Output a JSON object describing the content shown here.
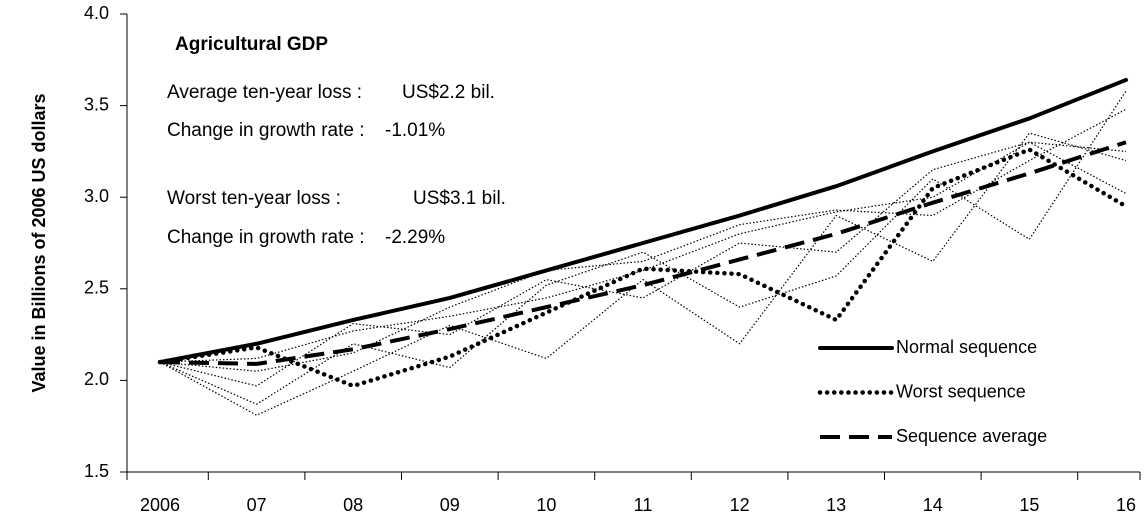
{
  "chart_data": {
    "type": "line",
    "annotations": [
      "Agricultural GDP",
      "Average ten-year loss :",
      "US$2.2 bil.",
      "Change in growth rate :",
      "-1.01%",
      "Worst ten-year loss :",
      "US$3.1 bil.",
      "Change in growth rate :",
      "-2.29%"
    ],
    "y_label": "Value in Billions of 2006 US dollars",
    "categories": [
      "2006",
      "07",
      "08",
      "09",
      "10",
      "11",
      "12",
      "13",
      "14",
      "15",
      "16"
    ],
    "ylim": [
      1.5,
      4.0
    ],
    "yticks": [
      1.5,
      {
        "value": 2,
        "label": "2.0"
      },
      2.5,
      {
        "value": 3,
        "label": "3.0"
      },
      3.5,
      {
        "value": 4,
        "label": "4.0"
      }
    ],
    "legend": "lower right",
    "series": [
      {
        "color": "#000000",
        "style": "thin-dotted",
        "values": [
          2.1,
          1.81,
          2.05,
          2.3,
          2.12,
          2.55,
          2.2,
          2.9,
          2.65,
          3.35,
          3.2
        ]
      },
      {
        "color": "#000000",
        "style": "thin-dotted",
        "values": [
          2.1,
          1.87,
          2.2,
          2.07,
          2.52,
          2.7,
          2.4,
          2.57,
          3.1,
          2.77,
          3.58
        ]
      },
      {
        "color": "#000000",
        "style": "thin-dotted",
        "values": [
          2.1,
          1.97,
          2.31,
          2.25,
          2.55,
          2.45,
          2.75,
          2.7,
          3.15,
          3.3,
          3.02
        ]
      },
      {
        "color": "#000000",
        "style": "thin-dotted",
        "values": [
          2.1,
          2.05,
          2.15,
          2.4,
          2.6,
          2.65,
          2.85,
          2.93,
          2.9,
          3.2,
          3.48
        ]
      },
      {
        "color": "#000000",
        "style": "thin-dotted",
        "values": [
          2.1,
          2.12,
          2.27,
          2.35,
          2.45,
          2.6,
          2.8,
          2.92,
          3.0,
          3.3,
          3.25
        ]
      },
      {
        "name": "Normal sequence",
        "color": "#000000",
        "style": "solid",
        "values": [
          2.1,
          2.2,
          2.33,
          2.45,
          2.6,
          2.75,
          2.9,
          3.06,
          3.25,
          3.43,
          3.64
        ]
      },
      {
        "name": "Worst sequence",
        "color": "#000000",
        "style": "dotted",
        "values": [
          2.1,
          2.18,
          1.97,
          2.13,
          2.37,
          2.61,
          2.58,
          2.33,
          3.05,
          3.26,
          2.95
        ]
      },
      {
        "name": "Sequence average",
        "color": "#000000",
        "style": "dashed",
        "values": [
          2.1,
          2.09,
          2.17,
          2.28,
          2.4,
          2.52,
          2.66,
          2.8,
          2.97,
          3.13,
          3.3
        ]
      }
    ]
  }
}
